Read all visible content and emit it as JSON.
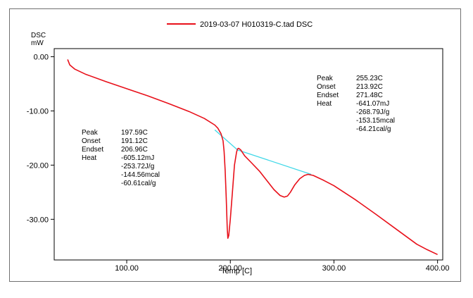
{
  "chart_data": {
    "type": "line",
    "title": "",
    "xlabel": "Temp  [C]",
    "ylabel": "DSC",
    "yunit": "mW",
    "xlim": [
      30,
      405
    ],
    "ylim": [
      -37.5,
      1.5
    ],
    "xticks": [
      100,
      200,
      300,
      400
    ],
    "xtick_labels": [
      "100.00",
      "200.00",
      "300.00",
      "400.00"
    ],
    "yticks": [
      0,
      -10,
      -20,
      -30
    ],
    "ytick_labels": [
      "0.00",
      "-10.00",
      "-20.00",
      "-30.00"
    ],
    "grid": false,
    "legend": "top-center",
    "colors": {
      "curve": "#e8101a",
      "baseline": "#40d8e8",
      "axis": "#000000"
    },
    "series": [
      {
        "name": "2019-03-07 H010319-C.tad DSC",
        "color": "#e8101a",
        "x": [
          43,
          45,
          50,
          60,
          80,
          100,
          120,
          140,
          160,
          175,
          185,
          188,
          191,
          193,
          194,
          195,
          196,
          197,
          197.6,
          198.5,
          200,
          202,
          204,
          206,
          207,
          208,
          210,
          213.9,
          220,
          228,
          235,
          242,
          248,
          252,
          255.2,
          258,
          262,
          267,
          271.5,
          275,
          280,
          290,
          300,
          320,
          340,
          360,
          380,
          390,
          400
        ],
        "y": [
          -0.5,
          -1.5,
          -2.3,
          -3.2,
          -4.6,
          -5.9,
          -7.2,
          -8.6,
          -10.1,
          -11.4,
          -12.6,
          -13.2,
          -14.2,
          -15.5,
          -17.5,
          -21,
          -26,
          -31.5,
          -33.5,
          -33,
          -30,
          -25,
          -20,
          -17.6,
          -17.0,
          -16.9,
          -17.2,
          -18.3,
          -19.5,
          -21.1,
          -22.8,
          -24.5,
          -25.6,
          -25.9,
          -25.7,
          -25.0,
          -23.7,
          -22.5,
          -21.9,
          -21.7,
          -21.9,
          -22.8,
          -23.8,
          -26.3,
          -29,
          -31.8,
          -34.6,
          -35.6,
          -36.5
        ]
      }
    ],
    "baselines": [
      {
        "x": [
          185,
          206.96
        ],
        "y": [
          -13.5,
          -17.2
        ]
      },
      {
        "x": [
          206.96,
          278
        ],
        "y": [
          -17.2,
          -21.7
        ]
      }
    ],
    "annotations": [
      {
        "rows": [
          {
            "label": "Peak",
            "value": "197.59C"
          },
          {
            "label": "Onset",
            "value": "191.12C"
          },
          {
            "label": "Endset",
            "value": "206.96C"
          },
          {
            "label": "Heat",
            "value": "-605.12mJ"
          },
          {
            "label": "",
            "value": "-253.72J/g"
          },
          {
            "label": "",
            "value": "-144.56mcal"
          },
          {
            "label": "",
            "value": "-60.61cal/g"
          }
        ]
      },
      {
        "rows": [
          {
            "label": "Peak",
            "value": "255.23C"
          },
          {
            "label": "Onset",
            "value": "213.92C"
          },
          {
            "label": "Endset",
            "value": "271.48C"
          },
          {
            "label": "Heat",
            "value": "-641.07mJ"
          },
          {
            "label": "",
            "value": "-268.79J/g"
          },
          {
            "label": "",
            "value": "-153.15mcal"
          },
          {
            "label": "",
            "value": "-64.21cal/g"
          }
        ]
      }
    ]
  }
}
